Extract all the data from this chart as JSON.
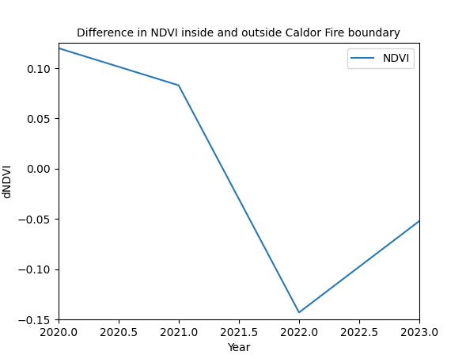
{
  "x": [
    2020,
    2021,
    2022,
    2023
  ],
  "y": [
    0.12,
    0.083,
    -0.143,
    -0.052
  ],
  "line_color": "#2878b5",
  "line_width": 1.5,
  "title": "Difference in NDVI inside and outside Caldor Fire boundary",
  "xlabel": "Year",
  "ylabel": "dNDVI",
  "legend_label": "NDVI",
  "xlim": [
    2020.0,
    2023.0
  ],
  "ylim": [
    -0.15,
    0.125
  ],
  "title_fontsize": 10,
  "axis_fontsize": 10,
  "tick_fontsize": 10,
  "background_color": "#ffffff",
  "figsize": [
    5.89,
    4.53
  ],
  "dpi": 100
}
